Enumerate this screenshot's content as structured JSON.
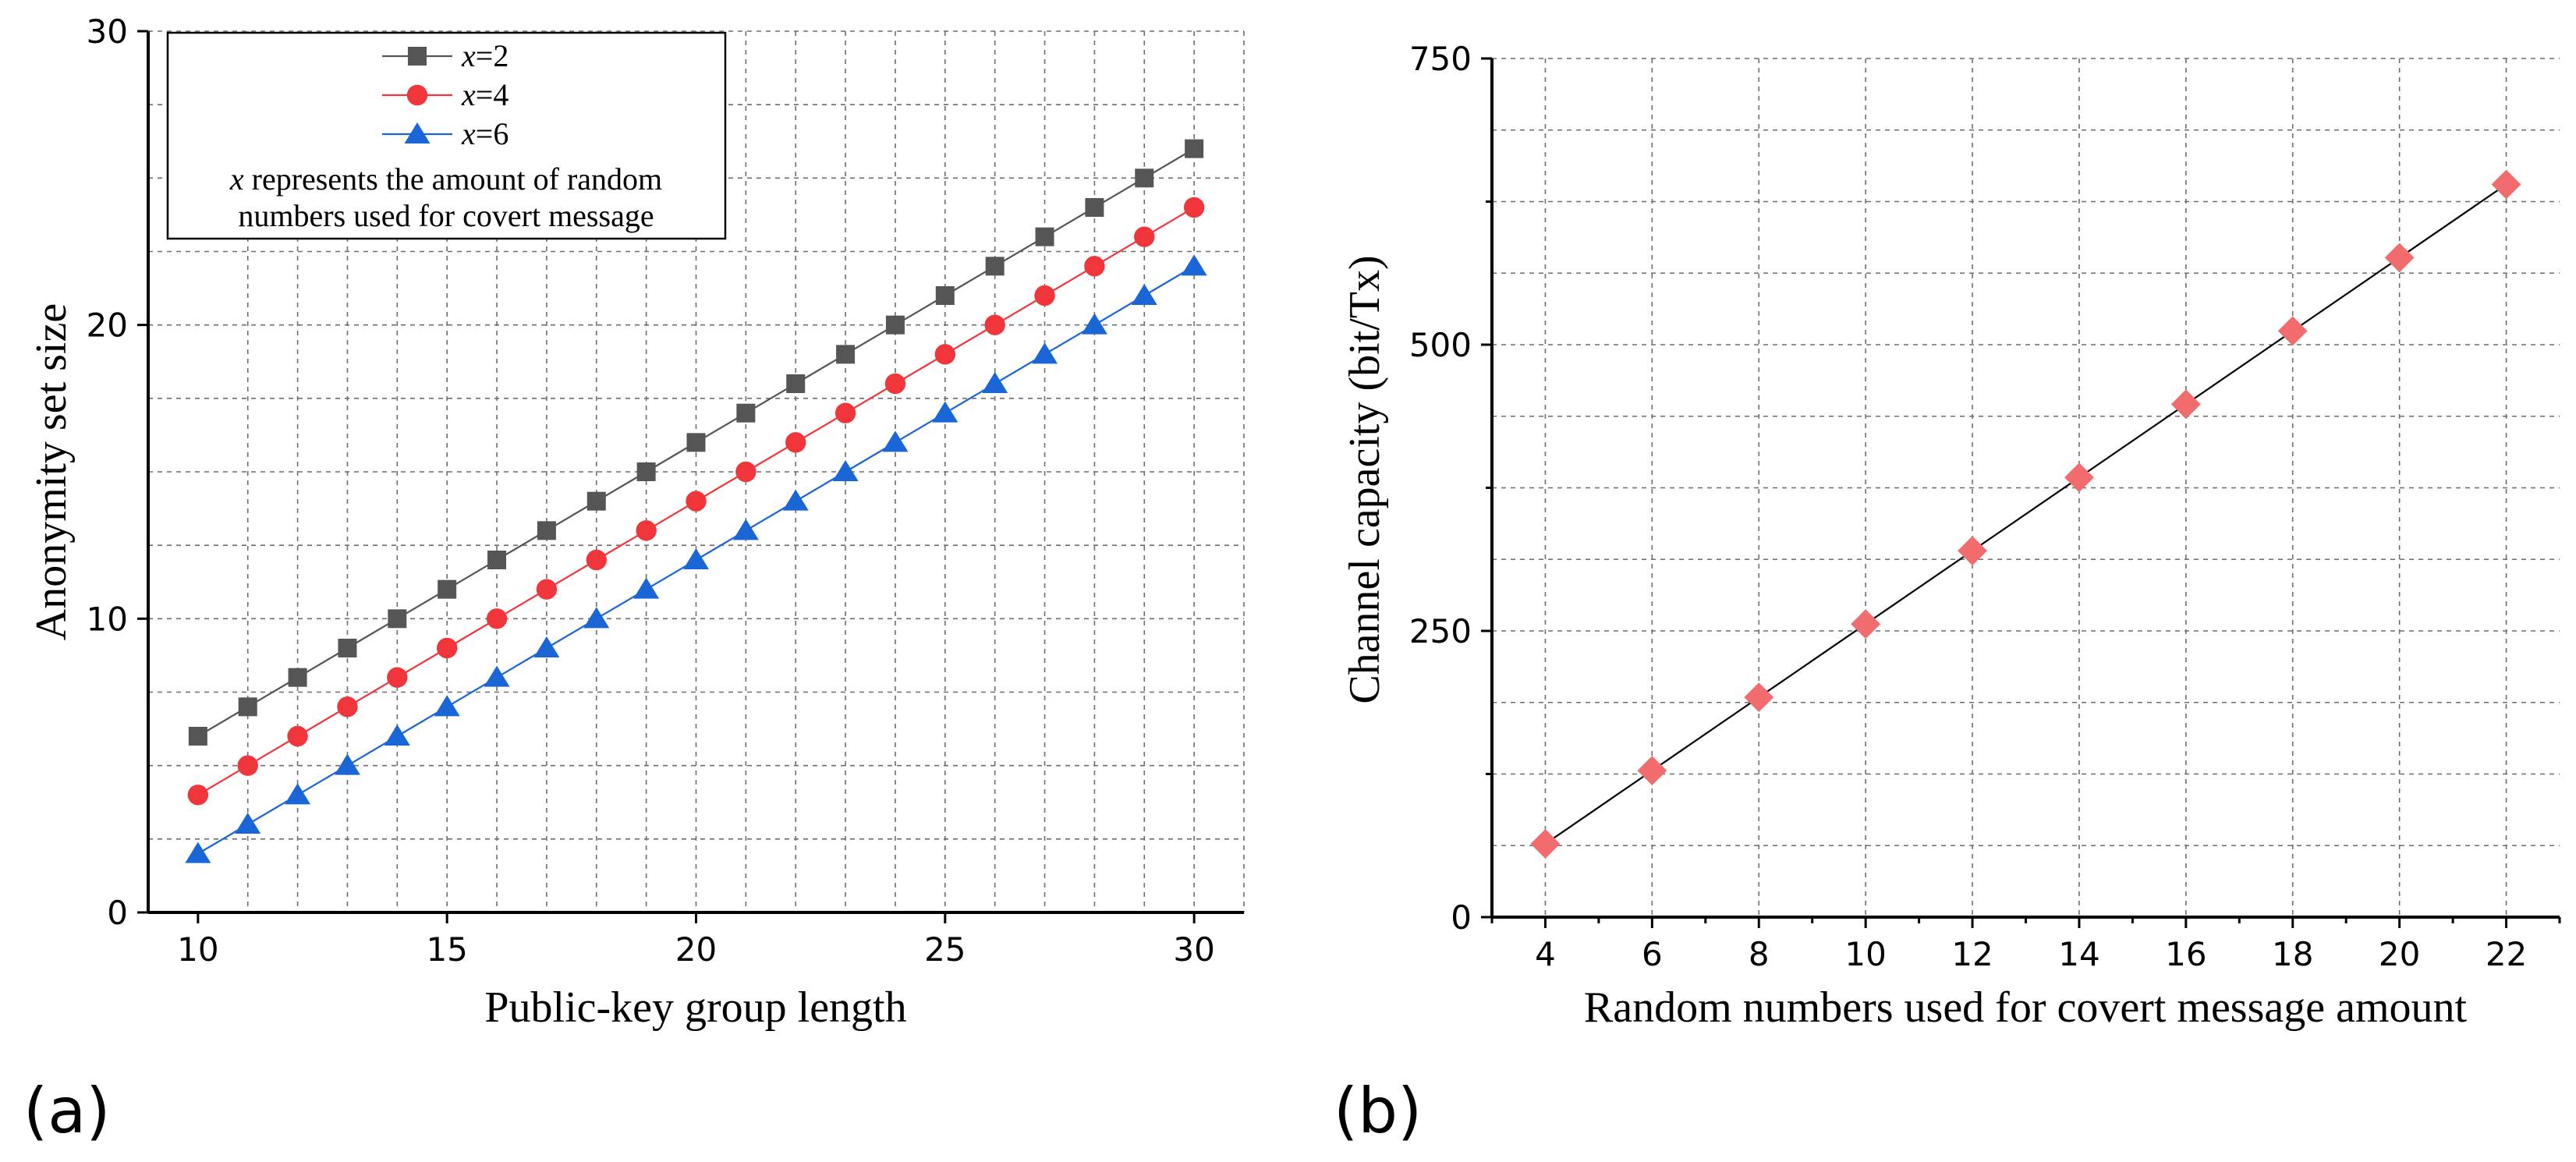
{
  "figure": {
    "panel_a_label": "(a)",
    "panel_b_label": "(b)"
  },
  "chart_data": [
    {
      "type": "line",
      "panel": "(a)",
      "title": "",
      "xlabel": "Public-key group length",
      "ylabel": "Anonymity set size",
      "xlim": [
        9,
        31
      ],
      "ylim": [
        0,
        30
      ],
      "xticks": [
        10,
        15,
        20,
        25,
        30
      ],
      "yticks": [
        0,
        10,
        20,
        30
      ],
      "x": [
        10,
        11,
        12,
        13,
        14,
        15,
        16,
        17,
        18,
        19,
        20,
        21,
        22,
        23,
        24,
        25,
        26,
        27,
        28,
        29,
        30
      ],
      "series": [
        {
          "name": "x=2",
          "name_var": "x",
          "name_value": "=2",
          "marker": "square",
          "color": "#555555",
          "line_color": "#555555",
          "values": [
            6,
            7,
            8,
            9,
            10,
            11,
            12,
            13,
            14,
            15,
            16,
            17,
            18,
            19,
            20,
            21,
            22,
            23,
            24,
            25,
            26
          ]
        },
        {
          "name": "x=4",
          "name_var": "x",
          "name_value": "=4",
          "marker": "circle",
          "color": "#f0353b",
          "line_color": "#f0353b",
          "values": [
            4,
            5,
            6,
            7,
            8,
            9,
            10,
            11,
            12,
            13,
            14,
            15,
            16,
            17,
            18,
            19,
            20,
            21,
            22,
            23,
            24
          ]
        },
        {
          "name": "x=6",
          "name_var": "x",
          "name_value": "=6",
          "marker": "triangle",
          "color": "#1a66d6",
          "line_color": "#1a66d6",
          "values": [
            2,
            3,
            4,
            5,
            6,
            7,
            8,
            9,
            10,
            11,
            12,
            13,
            14,
            15,
            16,
            17,
            18,
            19,
            20,
            21,
            22
          ]
        }
      ],
      "legend": {
        "position": "top-left",
        "note_line1_var": "x",
        "note_line1": " represents the amount of random",
        "note_line2": "numbers used for covert message"
      },
      "grid": true
    },
    {
      "type": "line",
      "panel": "(b)",
      "title": "",
      "xlabel": "Random numbers used for covert message amount",
      "ylabel": "Channel capacity (bit/Tx)",
      "xlim": [
        3,
        23
      ],
      "ylim": [
        0,
        750
      ],
      "xticks": [
        4,
        6,
        8,
        10,
        12,
        14,
        16,
        18,
        20,
        22
      ],
      "yticks": [
        0,
        250,
        500,
        750
      ],
      "x": [
        4,
        6,
        8,
        10,
        12,
        14,
        16,
        18,
        20,
        22
      ],
      "series": [
        {
          "name": "capacity",
          "marker": "diamond",
          "color": "#f26b6d",
          "line_color": "#000000",
          "values": [
            64,
            128,
            192,
            256,
            320,
            384,
            448,
            512,
            576,
            640
          ]
        }
      ],
      "grid": true
    }
  ]
}
